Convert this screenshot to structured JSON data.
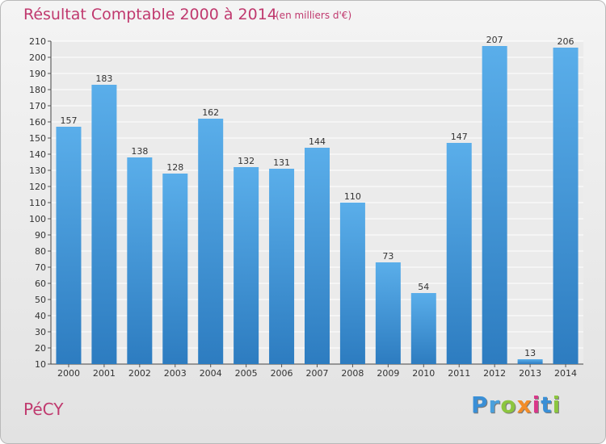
{
  "header": {
    "title": "Résultat Comptable 2000 à 2014",
    "subtitle": "(en milliers d'€)"
  },
  "footer": {
    "place": "PéCY",
    "logo_text": "Proxiti",
    "logo_letters": [
      {
        "ch": "P",
        "color": "#3a8fd6"
      },
      {
        "ch": "r",
        "color": "#4aa0dc"
      },
      {
        "ch": "o",
        "color": "#8cc63f"
      },
      {
        "ch": "x",
        "color": "#f28c28"
      },
      {
        "ch": "i",
        "color": "#d9388a"
      },
      {
        "ch": "t",
        "color": "#3a8fd6"
      },
      {
        "ch": "i",
        "color": "#8cc63f"
      }
    ]
  },
  "colors": {
    "bar_top": "#5aaeea",
    "bar_bottom": "#2d7cc0",
    "accent": "#c0396e"
  },
  "chart_data": {
    "type": "bar",
    "title": "Résultat Comptable 2000 à 2014",
    "subtitle": "(en milliers d'€)",
    "categories": [
      "2000",
      "2001",
      "2002",
      "2003",
      "2004",
      "2005",
      "2006",
      "2007",
      "2008",
      "2009",
      "2010",
      "2011",
      "2012",
      "2013",
      "2014"
    ],
    "values": [
      157,
      183,
      138,
      128,
      162,
      132,
      131,
      144,
      110,
      73,
      54,
      147,
      207,
      13,
      206
    ],
    "ylim": [
      10,
      210
    ],
    "ytick_step": 10,
    "grid": true,
    "xlabel": "",
    "ylabel": ""
  }
}
